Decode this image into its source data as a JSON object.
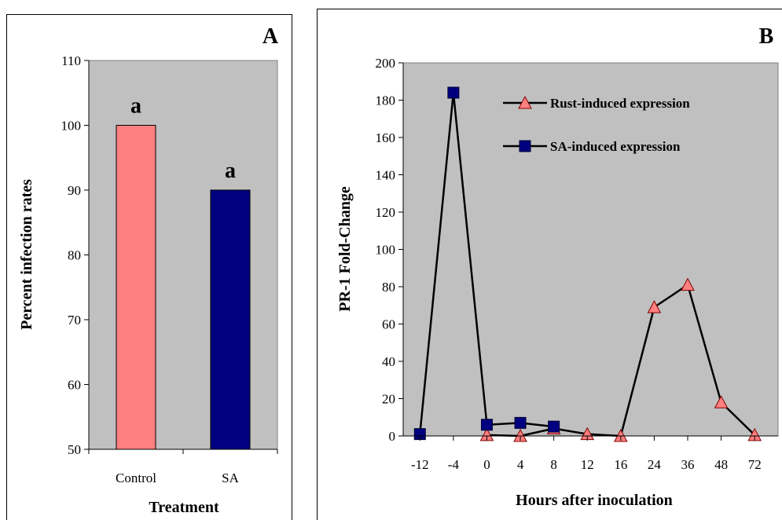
{
  "chart_data": [
    {
      "type": "bar",
      "panel_label": "A",
      "categories": [
        "Control",
        "SA"
      ],
      "values": [
        100,
        90
      ],
      "bar_colors": [
        "#ff8080",
        "#000080"
      ],
      "annotations": [
        "a",
        "a"
      ],
      "xlabel": "Treatment",
      "ylabel": "Percent infection rates",
      "ylim": [
        50,
        110
      ],
      "yticks": [
        "50",
        "60",
        "70",
        "80",
        "90",
        "100",
        "110"
      ],
      "plot_background": "#c0c0c0",
      "grid": false
    },
    {
      "type": "line",
      "panel_label": "B",
      "categories": [
        "-12",
        "-4",
        "0",
        "4",
        "8",
        "12",
        "16",
        "24",
        "36",
        "48",
        "72"
      ],
      "series": [
        {
          "name": "Rust-induced expression",
          "marker": "triangle",
          "color": "#ff8080",
          "points": [
            {
              "x": "0",
              "y": 0.5
            },
            {
              "x": "4",
              "y": 0
            },
            {
              "x": "8",
              "y": 4
            },
            {
              "x": "12",
              "y": 1
            },
            {
              "x": "16",
              "y": 0
            },
            {
              "x": "24",
              "y": 69
            },
            {
              "x": "36",
              "y": 81
            },
            {
              "x": "48",
              "y": 18
            },
            {
              "x": "72",
              "y": 0.5
            }
          ]
        },
        {
          "name": "SA-induced expression",
          "marker": "square",
          "color": "#000080",
          "points": [
            {
              "x": "-12",
              "y": 1
            },
            {
              "x": "-4",
              "y": 184
            },
            {
              "x": "0",
              "y": 6
            },
            {
              "x": "4",
              "y": 7
            },
            {
              "x": "8",
              "y": 5
            }
          ]
        }
      ],
      "xlabel": "Hours after inoculation",
      "ylabel": "PR-1 Fold-Change",
      "ylim": [
        0,
        200
      ],
      "yticks": [
        "0",
        "20",
        "40",
        "60",
        "80",
        "100",
        "120",
        "140",
        "160",
        "180",
        "200"
      ],
      "legend_position": "top-right",
      "plot_background": "#c0c0c0",
      "grid": false
    }
  ]
}
